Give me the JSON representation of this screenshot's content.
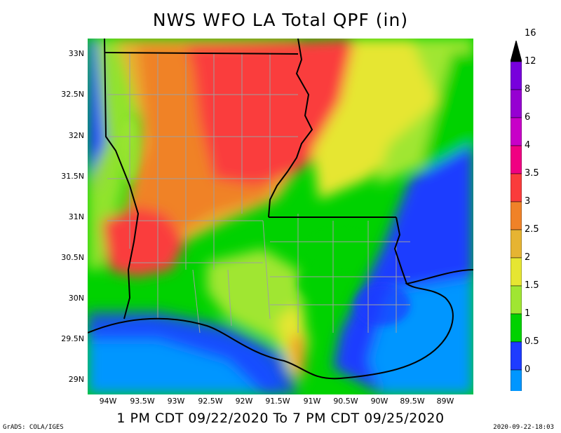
{
  "title": "NWS WFO LA Total QPF (in)",
  "subtitle": "1 PM CDT 09/22/2020 To 7 PM CDT 09/25/2020",
  "credit": "GrADS: COLA/IGES",
  "timestamp": "2020-09-22-18:03",
  "lat_labels": [
    "33N",
    "32.5N",
    "32N",
    "31.5N",
    "31N",
    "30.5N",
    "30N",
    "29.5N",
    "29N"
  ],
  "lon_labels": [
    "94W",
    "93.5W",
    "93W",
    "92.5W",
    "92W",
    "91.5W",
    "91W",
    "90.5W",
    "90W",
    "89.5W",
    "89W"
  ],
  "colorbar": {
    "levels": [
      "0",
      "0.5",
      "1",
      "1.5",
      "2",
      "2.5",
      "3",
      "3.5",
      "4",
      "6",
      "8",
      "12",
      "16"
    ],
    "colors": [
      "#00c8c8",
      "#0096ff",
      "#1e3cff",
      "#00d200",
      "#a0e632",
      "#e6e632",
      "#e6b432",
      "#f08228",
      "#fa3c3c",
      "#f00082",
      "#c800c8",
      "#9600d2",
      "#7800dc"
    ]
  }
}
